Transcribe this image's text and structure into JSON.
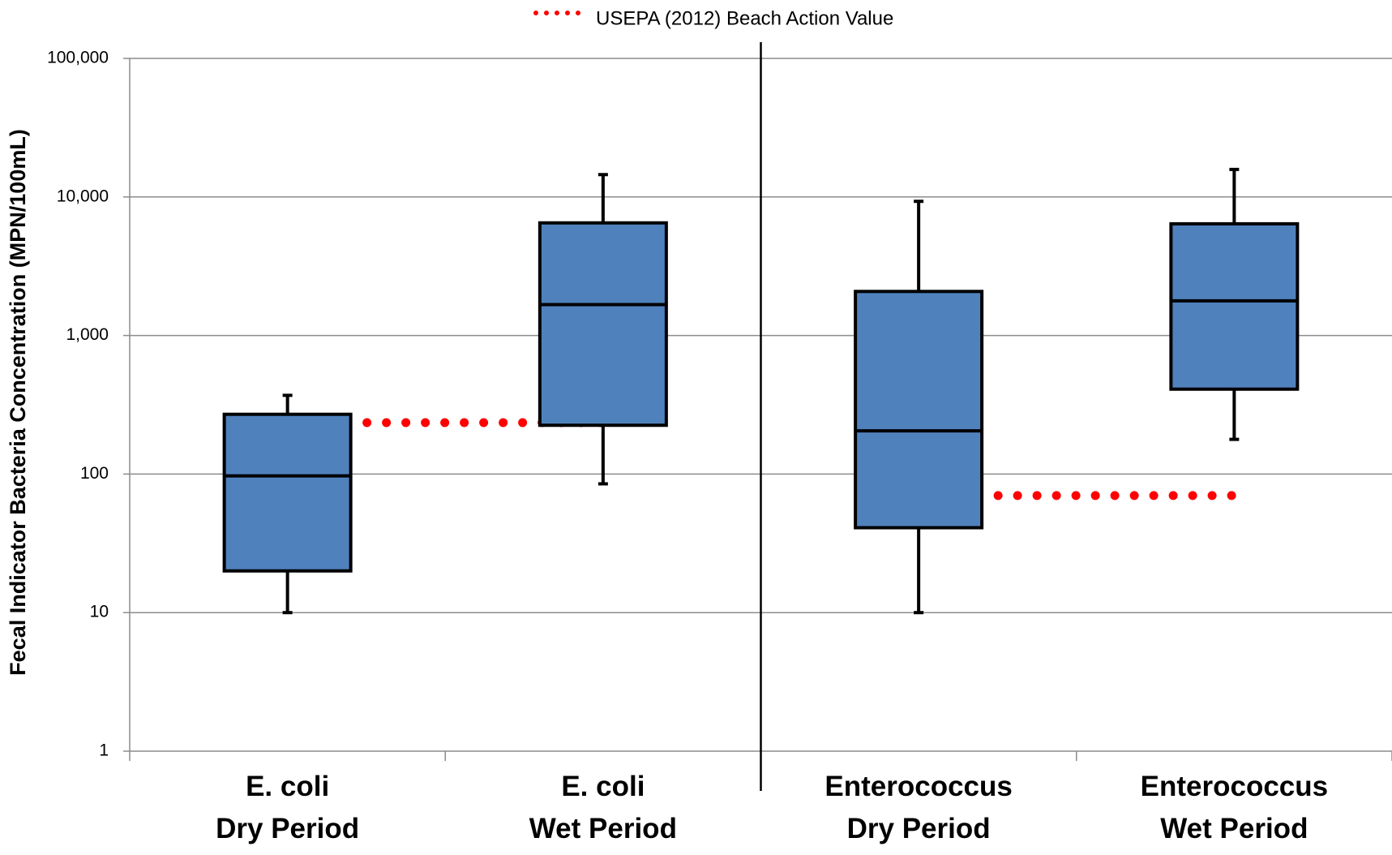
{
  "chart_data": {
    "type": "box",
    "ylabel": "Fecal Indicator Bacteria Concentration (MPN/100mL)",
    "yscale": "log",
    "ylim": [
      1,
      100000
    ],
    "yticks": [
      1,
      10,
      100,
      1000,
      10000,
      100000
    ],
    "ytick_labels": [
      "1",
      "10",
      "100",
      "1,000",
      "10,000",
      "100,000"
    ],
    "grid": true,
    "legend": {
      "position": "top-center",
      "label": "USEPA (2012) Beach Action Value"
    },
    "categories": [
      {
        "line1": "E. coli",
        "line2": "Dry Period"
      },
      {
        "line1": "E. coli",
        "line2": "Wet Period"
      },
      {
        "line1": "Enterococcus",
        "line2": "Dry Period"
      },
      {
        "line1": "Enterococcus",
        "line2": "Wet Period"
      }
    ],
    "boxes": [
      {
        "min": 10,
        "q1": 20,
        "median": 97,
        "q3": 270,
        "max": 370
      },
      {
        "min": 85,
        "q1": 225,
        "median": 1670,
        "q3": 6500,
        "max": 14500
      },
      {
        "min": 10,
        "q1": 41,
        "median": 205,
        "q3": 2080,
        "max": 9300
      },
      {
        "min": 178,
        "q1": 410,
        "median": 1780,
        "q3": 6400,
        "max": 15800
      }
    ],
    "reference_lines": [
      {
        "group": "E. coli",
        "value": 235
      },
      {
        "group": "Enterococcus",
        "value": 70
      }
    ],
    "colors": {
      "box_fill": "#4F81BD",
      "box_edge": "#000000",
      "reference": "#FF0000",
      "grid": "#8C8C8C"
    }
  }
}
